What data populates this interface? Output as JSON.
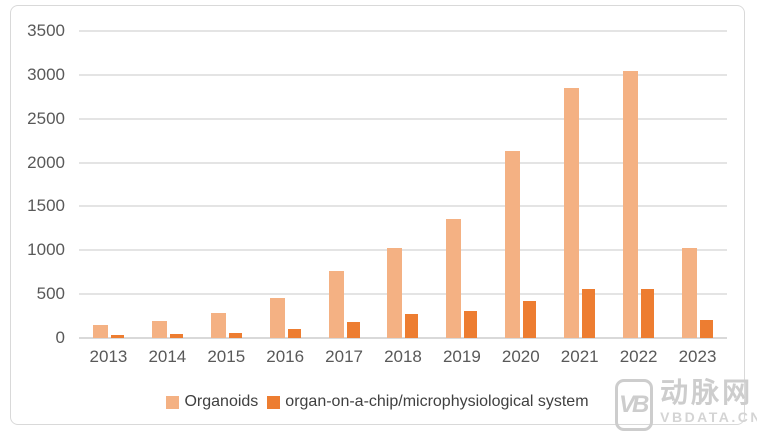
{
  "chart_data": {
    "type": "bar",
    "title": "",
    "categories": [
      "2013",
      "2014",
      "2015",
      "2016",
      "2017",
      "2018",
      "2019",
      "2020",
      "2021",
      "2022",
      "2023"
    ],
    "series": [
      {
        "name": "Organoids",
        "color": "#F4B183",
        "values": [
          150,
          190,
          280,
          460,
          770,
          1030,
          1360,
          2130,
          2850,
          3050,
          1030
        ]
      },
      {
        "name": "organ-on-a-chip/microphysiological system",
        "color": "#ED7D31",
        "values": [
          40,
          45,
          60,
          105,
          185,
          275,
          310,
          425,
          560,
          555,
          205
        ]
      }
    ],
    "xlabel": "",
    "ylabel": "",
    "ylim": [
      0,
      3500
    ],
    "ytick_step": 500,
    "grid": true,
    "legend_position": "bottom"
  },
  "colors": {
    "grid": "#e4e4e4",
    "baseline": "#d9d9d9",
    "axis_text": "#595959",
    "card_border": "#d9d9d9",
    "series_light": "#F4B183",
    "series_dark": "#ED7D31",
    "watermark": "#cdcdcd"
  },
  "legend": {
    "items": [
      {
        "label": "Organoids"
      },
      {
        "label": "organ-on-a-chip/microphysiological system"
      }
    ]
  },
  "watermark": {
    "logo_text": "VB",
    "brand_cn": "动脉网",
    "brand_url": "VBDATA.CN"
  }
}
